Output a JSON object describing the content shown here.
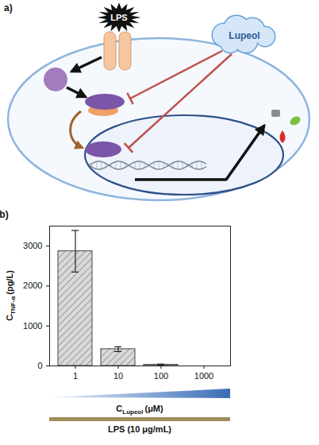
{
  "diagram": {
    "panel": "a)",
    "labels": {
      "stimulus": "LPS",
      "inhibitor": "Lupeol"
    }
  },
  "chart_data": {
    "type": "bar",
    "panel": "b)",
    "y_label": {
      "symbol": "C",
      "subscript": "TNF-α",
      "unit": "(pg/L)"
    },
    "x_label": {
      "symbol": "C",
      "subscript": "Lupeol",
      "unit": "(μM)"
    },
    "categories": [
      "1",
      "10",
      "100",
      "1000"
    ],
    "values": [
      2870,
      420,
      30,
      0
    ],
    "errors": [
      520,
      60,
      15,
      0
    ],
    "color": "#d9d9d9",
    "ylim": [
      0,
      3500
    ],
    "yticks": [
      0,
      1000,
      2000,
      3000
    ],
    "grid": false,
    "condition": "LPS (10 μg/mL)"
  }
}
